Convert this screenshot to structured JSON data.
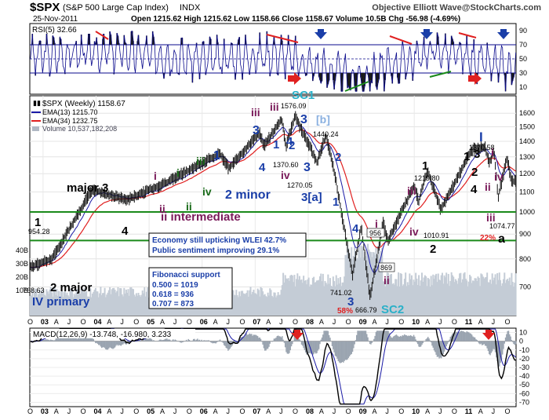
{
  "header": {
    "symbol": "$SPX",
    "name": "(S&P 500 Large Cap Index)",
    "exchange": "INDX",
    "date": "25-Nov-2011",
    "quote": "Open 1215.62  High 1215.62  Low 1158.66  Close 1158.67  Volume 10.5B  Chg -56.98 (-4.69%)",
    "brand": "Objective Elliott Wave@StockCharts.com"
  },
  "chart_data": [
    {
      "type": "line",
      "name": "rsi-panel",
      "title": "RSI(5) 32.66",
      "yticks": [
        10,
        30,
        50,
        70,
        90
      ],
      "ylim": [
        0,
        100
      ],
      "reference_lines": [
        30,
        50,
        70
      ],
      "series": [
        {
          "name": "RSI(5)",
          "x": [
            "2003-01",
            "2004-06",
            "2006-01",
            "2007-06",
            "2008-12",
            "2010-06",
            "2011-11"
          ],
          "values": [
            55,
            62,
            48,
            58,
            18,
            64,
            32.66
          ]
        }
      ]
    },
    {
      "type": "line",
      "name": "price-panel",
      "title": "$SPX (Weekly) 1158.67",
      "yscale": "log",
      "ylim": [
        620,
        1700
      ],
      "yticks": [
        700,
        800,
        900,
        1000,
        1100,
        1200,
        1300,
        1400,
        1500,
        1600
      ],
      "legend": [
        {
          "label": "$SPX (Weekly) 1158.67",
          "color": "#111111"
        },
        {
          "label": "EMA(13) 1215.70",
          "color": "#1a1aa6"
        },
        {
          "label": "EMA(34) 1232.75",
          "color": "#e02020"
        },
        {
          "label": "Volume 10,537,182,208",
          "color": "#9aa0a8"
        }
      ],
      "series": [
        {
          "name": "$SPX",
          "x": [
            "2002-10",
            "2003-03",
            "2003-12",
            "2004-08",
            "2005-04",
            "2006-05",
            "2006-07",
            "2007-02",
            "2007-03",
            "2007-07",
            "2007-08",
            "2007-10",
            "2008-03",
            "2008-05",
            "2008-07",
            "2008-11",
            "2009-01",
            "2009-03",
            "2009-06",
            "2009-07",
            "2010-01",
            "2010-02",
            "2010-04",
            "2010-07",
            "2011-02",
            "2011-05",
            "2011-06",
            "2011-07",
            "2011-08",
            "2011-10",
            "2011-11"
          ],
          "values": [
            768.63,
            800,
            1110,
            1060,
            1140,
            1320,
            1230,
            1460,
            1370.6,
            1555,
            1370.6,
            1576.09,
            1270.05,
            1440.24,
            1200,
            741.02,
            930,
            666.79,
            956,
            869,
            1140,
            1050,
            1219.8,
            1010.91,
            1344,
            1370.58,
            1258,
            1345,
            1074.77,
            1292,
            1158.67
          ]
        }
      ],
      "price_labels": [
        "954.28",
        "768.63",
        "1576.09",
        "1440.24",
        "1370.60",
        "1270.05",
        "741.02",
        "666.79",
        "956",
        "869",
        "1219.80",
        "1010.91",
        "1370.58",
        "1074.77"
      ],
      "support_lines": [
        1000,
        873
      ],
      "volume_yticks": [
        "40B",
        "30B",
        "20B",
        "10B"
      ],
      "xticks": [
        "O",
        "03",
        "A",
        "J",
        "O",
        "04",
        "A",
        "J",
        "O",
        "05",
        "A",
        "J",
        "O",
        "06",
        "A",
        "J",
        "O",
        "07",
        "A",
        "J",
        "O",
        "08",
        "A",
        "J",
        "O",
        "09",
        "A",
        "J",
        "O",
        "10",
        "A",
        "J",
        "O",
        "11",
        "A",
        "J",
        "O"
      ],
      "wave_labels": [
        "1",
        "2 major",
        "IV primary",
        "major 3",
        "4",
        "i",
        "ii",
        "iii",
        "iv",
        "i",
        "ii",
        "iii",
        "iv",
        "1",
        "2 minor",
        "ii intermediate",
        "iii",
        "3",
        "4",
        "1",
        "2",
        "3",
        "4",
        "SC1",
        "[b]",
        "3",
        "3[a]",
        "4",
        "1",
        "2",
        "3",
        "i",
        "ii",
        "1",
        "2",
        "iii",
        "iv",
        "1",
        "2",
        "3",
        "4",
        "I",
        "i",
        "ii",
        "iii",
        "iv",
        "a",
        "SC2",
        "22%",
        "58%"
      ],
      "annotations": {
        "box1": [
          "Economy still upticking WLEI 42.7%",
          "Public sentiment improving 29.1%"
        ],
        "fib_title": "Fibonacci support",
        "fib_lines": [
          "0.500 = 1019",
          "0.618 = 936",
          "0.707 = 873"
        ]
      }
    },
    {
      "type": "line",
      "name": "macd-panel",
      "title": "MACD(12,26,9) -13.748, -16.980, 3.233",
      "ylim": [
        -75,
        15
      ],
      "yticks": [
        10,
        0,
        -10,
        -20,
        -30,
        -40,
        -50,
        -60,
        -70
      ],
      "series": [
        {
          "name": "MACD",
          "values": [
            -13.748
          ]
        },
        {
          "name": "Signal",
          "values": [
            -16.98
          ]
        },
        {
          "name": "Histogram",
          "values": [
            3.233
          ]
        }
      ],
      "xticks": [
        "O",
        "03",
        "A",
        "J",
        "O",
        "04",
        "A",
        "J",
        "O",
        "05",
        "A",
        "J",
        "O",
        "06",
        "A",
        "J",
        "O",
        "07",
        "A",
        "J",
        "O",
        "08",
        "A",
        "J",
        "O",
        "09",
        "A",
        "J",
        "O",
        "10",
        "A",
        "J",
        "O",
        "11",
        "A",
        "J",
        "O"
      ]
    }
  ],
  "colors": {
    "rsi_line": "#0a0a8c",
    "rsi_fill": "#1a1a1a",
    "price": "#111111",
    "ema13": "#1a1aa6",
    "ema34": "#e02020",
    "support": "#1a8a1a",
    "wave_green": "#1a6b1a",
    "wave_purple": "#7a1a5a",
    "wave_blue": "#1a3ea8",
    "wave_cyan": "#2ab0c8",
    "alert_red": "#e02020"
  }
}
